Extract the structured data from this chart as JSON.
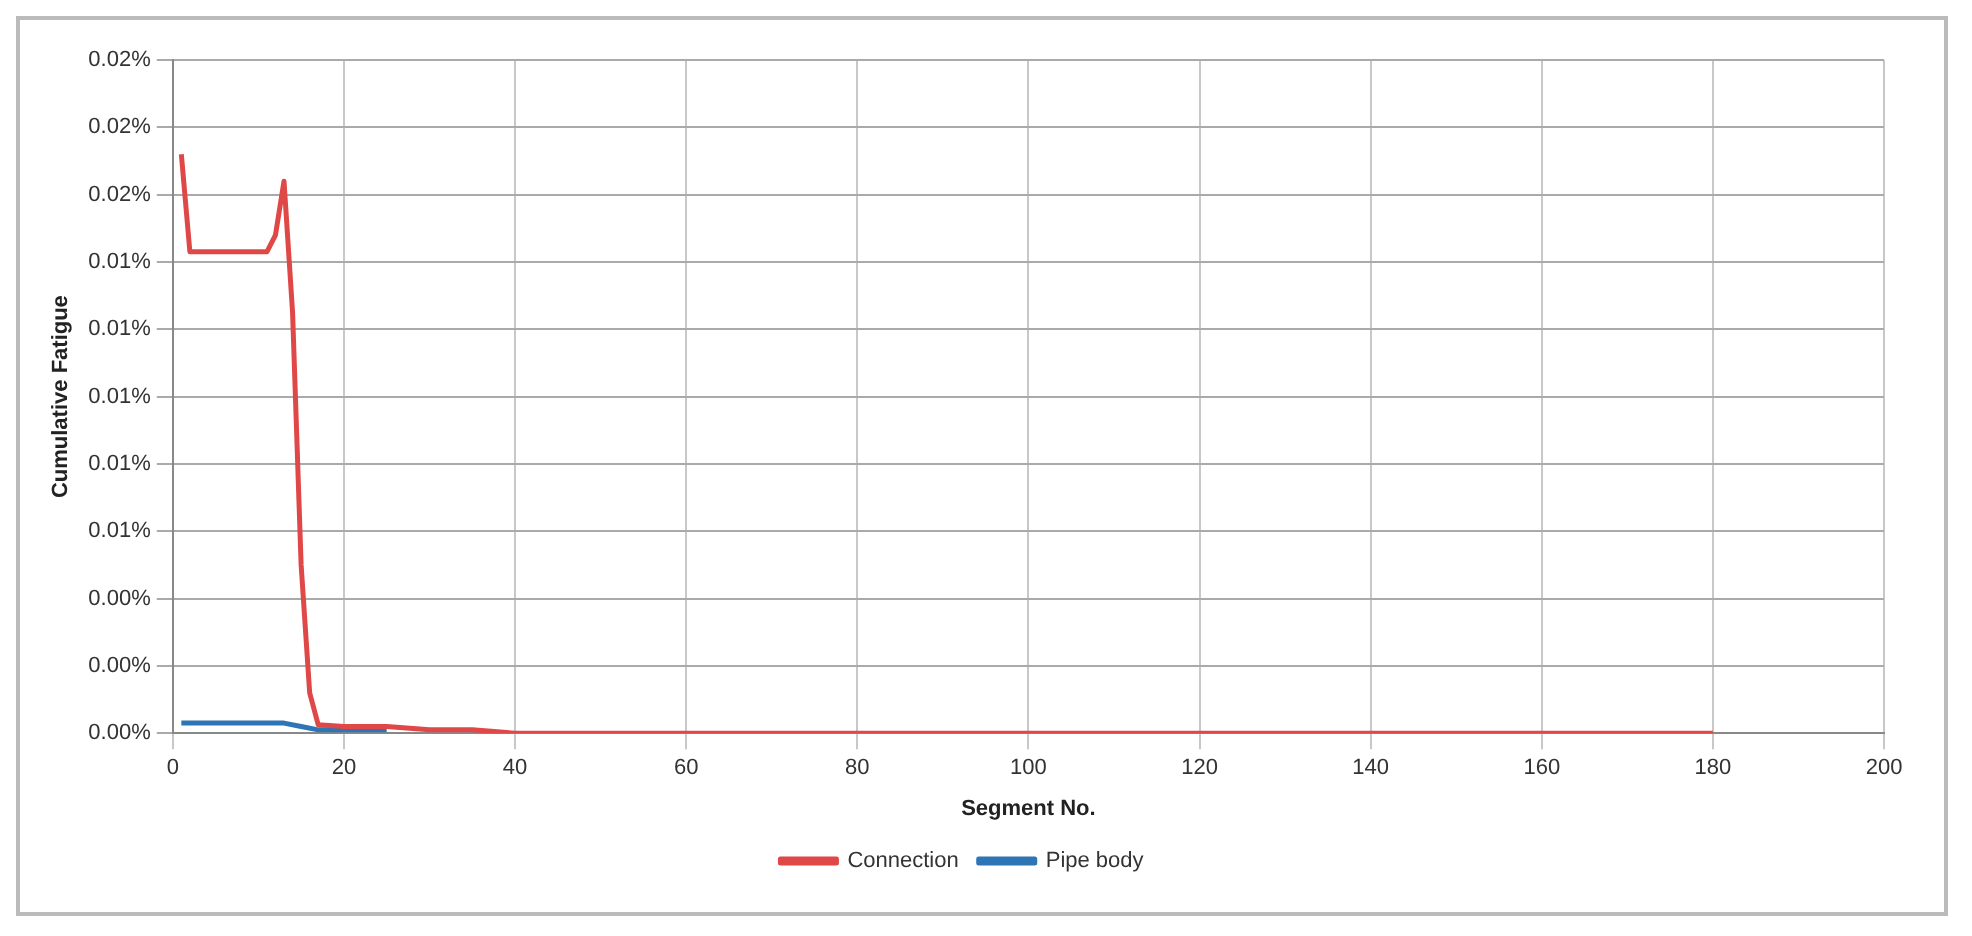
{
  "chart_data": {
    "type": "line",
    "xlabel": "Segment No.",
    "ylabel": "Cumulative Fatigue",
    "xlim": [
      0,
      200
    ],
    "xticks": [
      0,
      20,
      40,
      60,
      80,
      100,
      120,
      140,
      160,
      180,
      200
    ],
    "ylim": [
      0,
      0.02
    ],
    "yticks": [
      {
        "value": 0,
        "label": "0.00%"
      },
      {
        "value": 0.002,
        "label": "0.00%"
      },
      {
        "value": 0.004,
        "label": "0.00%"
      },
      {
        "value": 0.006,
        "label": "0.01%"
      },
      {
        "value": 0.008,
        "label": "0.01%"
      },
      {
        "value": 0.01,
        "label": "0.01%"
      },
      {
        "value": 0.012,
        "label": "0.01%"
      },
      {
        "value": 0.014,
        "label": "0.01%"
      },
      {
        "value": 0.016,
        "label": "0.02%"
      },
      {
        "value": 0.018,
        "label": "0.02%"
      },
      {
        "value": 0.02,
        "label": "0.02%"
      }
    ],
    "grid": true,
    "legend": "bottom",
    "marker": "none",
    "line_style": "solid",
    "series": [
      {
        "name": "Pipe body",
        "color": "#2e75b6",
        "x": [
          1,
          5,
          10,
          13,
          15,
          17,
          20,
          25
        ],
        "values": [
          0.0003,
          0.0003,
          0.0003,
          0.0003,
          0.0002,
          0.0001,
          0.0001,
          0.0001
        ]
      },
      {
        "name": "Connection",
        "color": "#e04848",
        "x": [
          1,
          2,
          5,
          8,
          11,
          12,
          13,
          14,
          15,
          16,
          17,
          20,
          25,
          30,
          35,
          40,
          60,
          100,
          140,
          180
        ],
        "values": [
          0.0172,
          0.0143,
          0.0143,
          0.0143,
          0.0143,
          0.0148,
          0.0164,
          0.0125,
          0.005,
          0.0012,
          0.00025,
          0.0002,
          0.0002,
          0.0001,
          0.0001,
          0,
          0,
          0,
          0,
          0
        ]
      }
    ]
  }
}
